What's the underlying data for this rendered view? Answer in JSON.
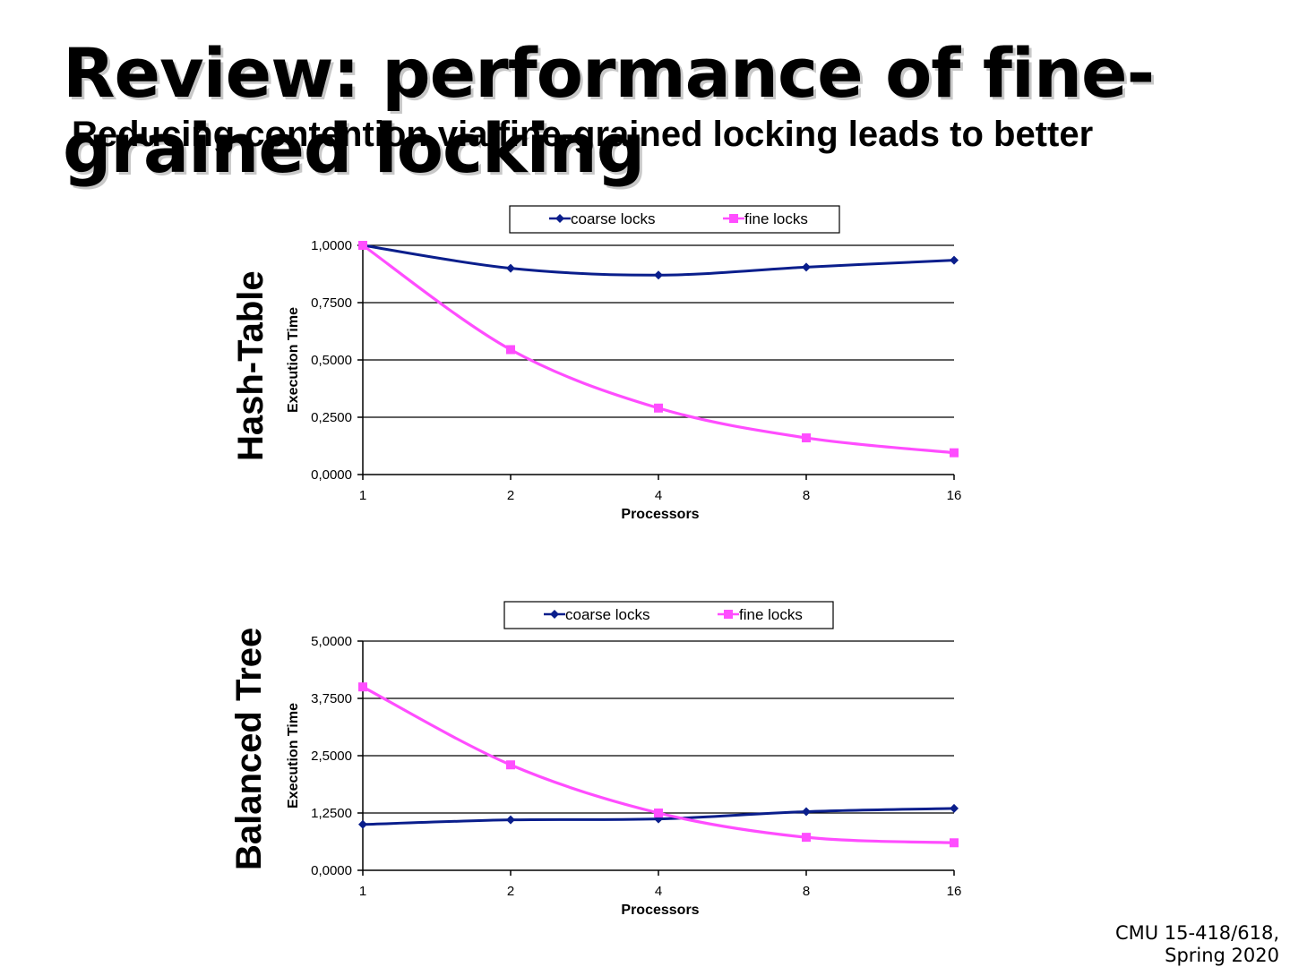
{
  "slide": {
    "title_line1": "Review: performance of fine-",
    "title_line2": "grained locking",
    "subtitle": "Reducing contention via fine-grained locking leads to better",
    "footer_line1": "CMU 15-418/618,",
    "footer_line2": "Spring 2020"
  },
  "chart_data": [
    {
      "type": "line",
      "side_label": "Hash-Table",
      "xlabel": "Processors",
      "ylabel": "Execution Time",
      "categories": [
        "1",
        "2",
        "4",
        "8",
        "16"
      ],
      "ylim": [
        0,
        1
      ],
      "yticks": [
        "0,0000",
        "0,2500",
        "0,5000",
        "0,7500",
        "1,0000"
      ],
      "grid": true,
      "legend": "top",
      "series": [
        {
          "name": "coarse locks",
          "color": "#0a1e8c",
          "marker": "diamond",
          "values": [
            1.0,
            0.9,
            0.87,
            0.905,
            0.935
          ]
        },
        {
          "name": "fine locks",
          "color": "#ff4dff",
          "marker": "square",
          "values": [
            1.0,
            0.545,
            0.29,
            0.16,
            0.095
          ]
        }
      ]
    },
    {
      "type": "line",
      "side_label": "Balanced Tree",
      "xlabel": "Processors",
      "ylabel": "Execution Time",
      "categories": [
        "1",
        "2",
        "4",
        "8",
        "16"
      ],
      "ylim": [
        0,
        5
      ],
      "yticks": [
        "0,0000",
        "1,2500",
        "2,5000",
        "3,7500",
        "5,0000"
      ],
      "grid": true,
      "legend": "top",
      "series": [
        {
          "name": "coarse locks",
          "color": "#0a1e8c",
          "marker": "diamond",
          "values": [
            1.0,
            1.1,
            1.12,
            1.28,
            1.35
          ]
        },
        {
          "name": "fine locks",
          "color": "#ff4dff",
          "marker": "square",
          "values": [
            4.0,
            2.3,
            1.25,
            0.72,
            0.6
          ]
        }
      ]
    }
  ]
}
